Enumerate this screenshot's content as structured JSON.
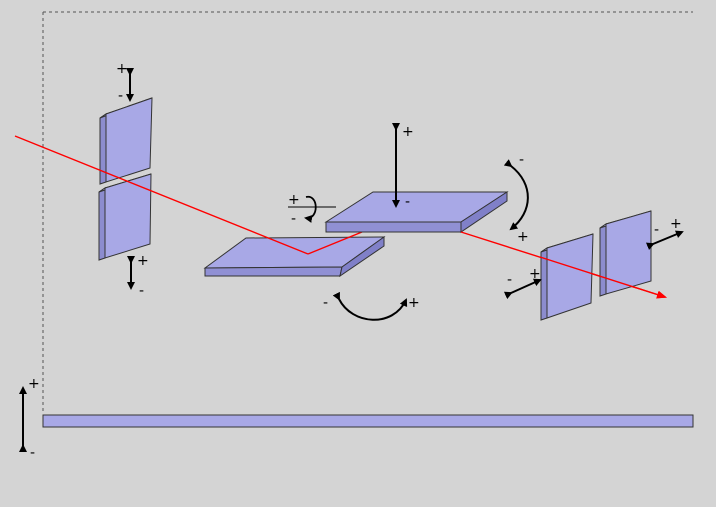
{
  "colors": {
    "background": "#d4d4d4",
    "plate_fill": "#a8a8e6",
    "plate_edge": "#8c8cce",
    "beam": "#ff0000",
    "arrow": "#000000",
    "frame": "#555555"
  },
  "signs": {
    "plus": "+",
    "minus": "-"
  }
}
